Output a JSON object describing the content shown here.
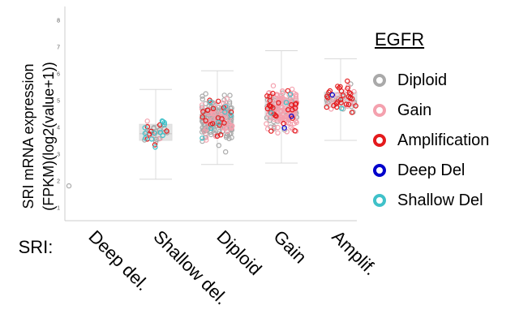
{
  "chart_data": {
    "type": "scatter",
    "ylabel_line1": "SRI mRNA expression",
    "ylabel_line2": "(FPKM)(log2(value+1))",
    "yticks": [
      "1",
      "2",
      "3",
      "4",
      "5",
      "6",
      "7",
      "8"
    ],
    "ylim": [
      0.5,
      8.5
    ],
    "category_prefix": "SRI:",
    "categories": [
      "Deep del.",
      "Shallow del.",
      "Diploid",
      "Gain",
      "Amplif."
    ],
    "boxes": [
      {
        "category": "Deep del.",
        "n": 1,
        "q1": null,
        "median": null,
        "q3": null,
        "lo": null,
        "hi": null
      },
      {
        "category": "Shallow del.",
        "n": 40,
        "q1": 3.5,
        "median": 3.75,
        "q3": 4.1,
        "lo": 2.05,
        "hi": 5.4
      },
      {
        "category": "Diploid",
        "n": 220,
        "q1": 3.9,
        "median": 4.3,
        "q3": 4.7,
        "lo": 2.6,
        "hi": 6.1
      },
      {
        "category": "Gain",
        "n": 200,
        "q1": 4.3,
        "median": 4.65,
        "q3": 5.1,
        "lo": 2.65,
        "hi": 6.85
      },
      {
        "category": "Amplif.",
        "n": 60,
        "q1": 4.75,
        "median": 5.0,
        "q3": 5.3,
        "lo": 3.5,
        "hi": 6.55
      }
    ],
    "legend_title": "EGFR",
    "series": [
      {
        "name": "Diploid",
        "color": "#a9a9a9"
      },
      {
        "name": "Gain",
        "color": "#f4a1ae"
      },
      {
        "name": "Amplification",
        "color": "#e41a1c"
      },
      {
        "name": "Deep Del",
        "color": "#0000cc"
      },
      {
        "name": "Shallow Del",
        "color": "#3fc1c9"
      }
    ],
    "counts": {
      "Deep del.": [
        1,
        0,
        0,
        0,
        0
      ],
      "Shallow del.": [
        18,
        3,
        7,
        0,
        12
      ],
      "Diploid": [
        150,
        45,
        18,
        0,
        7
      ],
      "Gain": [
        40,
        130,
        25,
        2,
        3
      ],
      "Amplif.": [
        15,
        15,
        28,
        1,
        1
      ]
    },
    "grid": false,
    "legend_position": "right"
  }
}
